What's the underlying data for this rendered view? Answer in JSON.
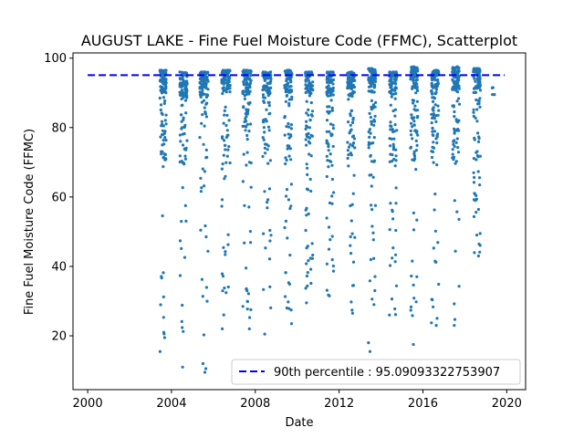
{
  "chart_data": {
    "type": "scatter",
    "title": "AUGUST LAKE - Fine Fuel Moisture Code (FFMC), Scatterplot",
    "xlabel": "Date",
    "ylabel": "Fine Fuel Moisture Code (FFMC)",
    "xlim": [
      1999.3,
      2020.9
    ],
    "ylim": [
      4.5,
      101.5
    ],
    "x_ticks": [
      2000,
      2004,
      2008,
      2012,
      2016,
      2020
    ],
    "x_tick_labels": [
      "2000",
      "2004",
      "2008",
      "2012",
      "2016",
      "2020"
    ],
    "y_ticks": [
      20,
      40,
      60,
      80,
      100
    ],
    "y_tick_labels": [
      "20",
      "40",
      "60",
      "80",
      "100"
    ],
    "grid": false,
    "legend_position": "lower-right",
    "point_color": "#1f77b4",
    "reference_line": {
      "label": "90th percentile : 95.09093322753907",
      "value": 95.09093322753907,
      "x_range": [
        2000,
        2019.9
      ],
      "color": "#0000ff",
      "style": "dashed"
    },
    "seasons": [
      {
        "x_range": [
          2003.45,
          2003.75
        ],
        "range": [
          15.5,
          96.5
        ]
      },
      {
        "x_range": [
          2004.4,
          2004.75
        ],
        "range": [
          11,
          96
        ]
      },
      {
        "x_range": [
          2005.35,
          2005.75
        ],
        "range": [
          9.5,
          96
        ]
      },
      {
        "x_range": [
          2006.4,
          2006.8
        ],
        "range": [
          22,
          96.5
        ]
      },
      {
        "x_range": [
          2007.4,
          2007.8
        ],
        "range": [
          22,
          96.5
        ]
      },
      {
        "x_range": [
          2008.35,
          2008.75
        ],
        "range": [
          20.5,
          96
        ]
      },
      {
        "x_range": [
          2009.4,
          2009.75
        ],
        "range": [
          23.5,
          96.5
        ]
      },
      {
        "x_range": [
          2010.4,
          2010.75
        ],
        "range": [
          29.5,
          96
        ]
      },
      {
        "x_range": [
          2011.4,
          2011.75
        ],
        "range": [
          31.5,
          96
        ]
      },
      {
        "x_range": [
          2012.4,
          2012.75
        ],
        "range": [
          26.5,
          96
        ]
      },
      {
        "x_range": [
          2013.4,
          2013.75
        ],
        "range": [
          15.5,
          97
        ]
      },
      {
        "x_range": [
          2014.4,
          2014.75
        ],
        "range": [
          26,
          96
        ]
      },
      {
        "x_range": [
          2015.4,
          2015.75
        ],
        "range": [
          17.5,
          97.5
        ]
      },
      {
        "x_range": [
          2016.4,
          2016.75
        ],
        "range": [
          23,
          96.5
        ]
      },
      {
        "x_range": [
          2017.4,
          2017.75
        ],
        "range": [
          23,
          97.5
        ]
      },
      {
        "x_range": [
          2018.4,
          2018.75
        ],
        "range": [
          43,
          97
        ]
      },
      {
        "x_range": [
          2019.3,
          2019.42
        ],
        "range": [
          89.5,
          91.5
        ]
      }
    ]
  }
}
